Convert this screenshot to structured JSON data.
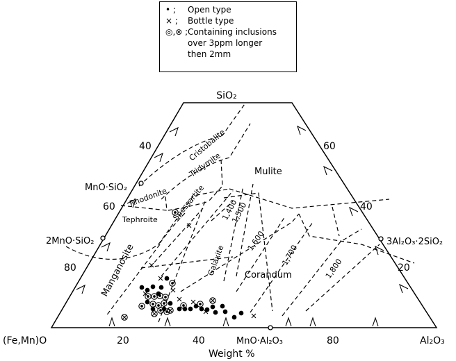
{
  "legend": {
    "open_symbol": "• ;",
    "open_label": "Open type",
    "bottle_symbol": "× ;",
    "bottle_label": "Bottle type",
    "incl_symbol": "◎,⊗ ;",
    "incl_label_1": "Containing inclusions",
    "incl_label_2": "over 3ppm longer",
    "incl_label_3": "then 2mm"
  },
  "vertices": {
    "top": "SiO₂",
    "bottom_left": "(Fe,Mn)O",
    "bottom_right": "Al₂O₃"
  },
  "compounds": {
    "mnsio3": "MnO·SiO₂",
    "mn2sio4": "2MnO·SiO₂",
    "mullite_comp": "3Al₂O₃·2SiO₂",
    "mnal2o4": "MnO·Al₂O₃"
  },
  "phases": {
    "cristobalite": "Cristobalite",
    "tridymite": "Tridymite",
    "rhodonite": "Rhodonite",
    "tephroite": "Tephroite",
    "spessartite": "Spessartite",
    "manganosite": "Manganosite",
    "galaxite": "Galaxite",
    "mullite": "Mulite",
    "corundum": "Corandum"
  },
  "isotherms": [
    "1,400",
    "1,500",
    "1,600",
    "1,700",
    "1,800"
  ],
  "left_ticks": [
    "40",
    "60",
    "80"
  ],
  "right_ticks": [
    "60",
    "40",
    "20"
  ],
  "bottom_ticks": [
    "20",
    "40",
    "80"
  ],
  "bottom_axis_label": "Weight %"
}
